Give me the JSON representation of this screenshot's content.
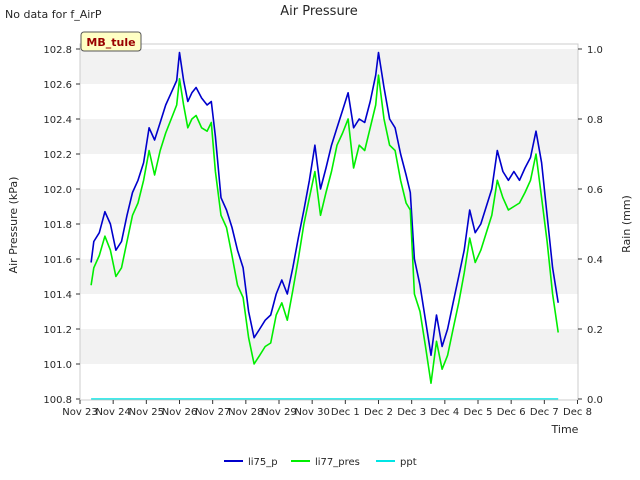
{
  "header": {
    "note": "No data for f_AirP"
  },
  "chart_data": {
    "type": "line",
    "title": "Air Pressure",
    "xlabel": "Time",
    "ylabel": "Air Pressure (kPa)",
    "y2label": "Rain (mm)",
    "station_badge": "MB_tule",
    "x_ticks": [
      "Nov 23",
      "Nov 24",
      "Nov 25",
      "Nov 26",
      "Nov 27",
      "Nov 28",
      "Nov 29",
      "Nov 30",
      "Dec 1",
      "Dec 2",
      "Dec 3",
      "Dec 4",
      "Dec 5",
      "Dec 6",
      "Dec 7",
      "Dec 8"
    ],
    "ylim": [
      100.8,
      102.8
    ],
    "y_ticks": [
      "100.8",
      "101.0",
      "101.2",
      "101.4",
      "101.6",
      "101.8",
      "102.0",
      "102.2",
      "102.4",
      "102.6",
      "102.8"
    ],
    "y2lim": [
      0.0,
      1.0
    ],
    "y2_ticks": [
      "0.0",
      "0.2",
      "0.4",
      "0.6",
      "0.8",
      "1.0"
    ],
    "grid": "horizontal bands",
    "legend_position": "bottom-center",
    "series": [
      {
        "name": "li75_p",
        "color": "#0000cc",
        "axis": "left",
        "points": [
          [
            "Nov 23 08:00",
            101.58
          ],
          [
            "Nov 23 10:00",
            101.7
          ],
          [
            "Nov 23 14:00",
            101.75
          ],
          [
            "Nov 23 18:00",
            101.87
          ],
          [
            "Nov 23 22:00",
            101.8
          ],
          [
            "Nov 24 02:00",
            101.65
          ],
          [
            "Nov 24 06:00",
            101.7
          ],
          [
            "Nov 24 10:00",
            101.85
          ],
          [
            "Nov 24 14:00",
            101.98
          ],
          [
            "Nov 24 18:00",
            102.05
          ],
          [
            "Nov 24 22:00",
            102.15
          ],
          [
            "Nov 25 02:00",
            102.35
          ],
          [
            "Nov 25 06:00",
            102.28
          ],
          [
            "Nov 25 10:00",
            102.38
          ],
          [
            "Nov 25 14:00",
            102.48
          ],
          [
            "Nov 25 18:00",
            102.55
          ],
          [
            "Nov 25 22:00",
            102.62
          ],
          [
            "Nov 26 00:00",
            102.78
          ],
          [
            "Nov 26 03:00",
            102.62
          ],
          [
            "Nov 26 06:00",
            102.5
          ],
          [
            "Nov 26 09:00",
            102.55
          ],
          [
            "Nov 26 12:00",
            102.58
          ],
          [
            "Nov 26 16:00",
            102.52
          ],
          [
            "Nov 26 20:00",
            102.48
          ],
          [
            "Nov 26 23:00",
            102.5
          ],
          [
            "Nov 27 02:00",
            102.3
          ],
          [
            "Nov 27 06:00",
            101.95
          ],
          [
            "Nov 27 10:00",
            101.88
          ],
          [
            "Nov 27 14:00",
            101.78
          ],
          [
            "Nov 27 18:00",
            101.65
          ],
          [
            "Nov 27 22:00",
            101.55
          ],
          [
            "Nov 28 02:00",
            101.3
          ],
          [
            "Nov 28 06:00",
            101.15
          ],
          [
            "Nov 28 10:00",
            101.2
          ],
          [
            "Nov 28 14:00",
            101.25
          ],
          [
            "Nov 28 18:00",
            101.28
          ],
          [
            "Nov 28 22:00",
            101.4
          ],
          [
            "Nov 29 02:00",
            101.48
          ],
          [
            "Nov 29 06:00",
            101.4
          ],
          [
            "Nov 29 10:00",
            101.55
          ],
          [
            "Nov 29 14:00",
            101.72
          ],
          [
            "Nov 29 18:00",
            101.88
          ],
          [
            "Nov 29 22:00",
            102.05
          ],
          [
            "Nov 30 02:00",
            102.25
          ],
          [
            "Nov 30 06:00",
            102.0
          ],
          [
            "Nov 30 10:00",
            102.12
          ],
          [
            "Nov 30 14:00",
            102.25
          ],
          [
            "Nov 30 18:00",
            102.35
          ],
          [
            "Nov 30 22:00",
            102.45
          ],
          [
            "Dec 1 02:00",
            102.55
          ],
          [
            "Dec 1 06:00",
            102.35
          ],
          [
            "Dec 1 10:00",
            102.4
          ],
          [
            "Dec 1 14:00",
            102.38
          ],
          [
            "Dec 1 18:00",
            102.5
          ],
          [
            "Dec 1 22:00",
            102.65
          ],
          [
            "Dec 2 00:00",
            102.78
          ],
          [
            "Dec 2 04:00",
            102.58
          ],
          [
            "Dec 2 08:00",
            102.4
          ],
          [
            "Dec 2 12:00",
            102.35
          ],
          [
            "Dec 2 16:00",
            102.2
          ],
          [
            "Dec 2 20:00",
            102.08
          ],
          [
            "Dec 2 23:00",
            101.98
          ],
          [
            "Dec 3 02:00",
            101.6
          ],
          [
            "Dec 3 06:00",
            101.45
          ],
          [
            "Dec 3 10:00",
            101.25
          ],
          [
            "Dec 3 14:00",
            101.05
          ],
          [
            "Dec 3 18:00",
            101.28
          ],
          [
            "Dec 3 22:00",
            101.1
          ],
          [
            "Dec 4 02:00",
            101.2
          ],
          [
            "Dec 4 06:00",
            101.35
          ],
          [
            "Dec 4 10:00",
            101.5
          ],
          [
            "Dec 4 14:00",
            101.65
          ],
          [
            "Dec 4 18:00",
            101.88
          ],
          [
            "Dec 4 22:00",
            101.75
          ],
          [
            "Dec 5 02:00",
            101.8
          ],
          [
            "Dec 5 06:00",
            101.9
          ],
          [
            "Dec 5 10:00",
            102.0
          ],
          [
            "Dec 5 14:00",
            102.22
          ],
          [
            "Dec 5 18:00",
            102.1
          ],
          [
            "Dec 5 22:00",
            102.05
          ],
          [
            "Dec 6 02:00",
            102.1
          ],
          [
            "Dec 6 06:00",
            102.05
          ],
          [
            "Dec 6 10:00",
            102.12
          ],
          [
            "Dec 6 14:00",
            102.18
          ],
          [
            "Dec 6 18:00",
            102.33
          ],
          [
            "Dec 6 22:00",
            102.15
          ],
          [
            "Dec 7 02:00",
            101.85
          ],
          [
            "Dec 7 06:00",
            101.55
          ],
          [
            "Dec 7 10:00",
            101.35
          ]
        ]
      },
      {
        "name": "li77_pres",
        "color": "#00ee00",
        "axis": "left",
        "points": [
          [
            "Nov 23 08:00",
            101.45
          ],
          [
            "Nov 23 10:00",
            101.55
          ],
          [
            "Nov 23 14:00",
            101.62
          ],
          [
            "Nov 23 18:00",
            101.73
          ],
          [
            "Nov 23 22:00",
            101.65
          ],
          [
            "Nov 24 02:00",
            101.5
          ],
          [
            "Nov 24 06:00",
            101.55
          ],
          [
            "Nov 24 10:00",
            101.7
          ],
          [
            "Nov 24 14:00",
            101.85
          ],
          [
            "Nov 24 18:00",
            101.92
          ],
          [
            "Nov 24 22:00",
            102.05
          ],
          [
            "Nov 25 02:00",
            102.22
          ],
          [
            "Nov 25 06:00",
            102.08
          ],
          [
            "Nov 25 10:00",
            102.22
          ],
          [
            "Nov 25 14:00",
            102.32
          ],
          [
            "Nov 25 18:00",
            102.4
          ],
          [
            "Nov 25 22:00",
            102.48
          ],
          [
            "Nov 26 00:00",
            102.63
          ],
          [
            "Nov 26 03:00",
            102.48
          ],
          [
            "Nov 26 06:00",
            102.35
          ],
          [
            "Nov 26 09:00",
            102.4
          ],
          [
            "Nov 26 12:00",
            102.42
          ],
          [
            "Nov 26 16:00",
            102.35
          ],
          [
            "Nov 26 20:00",
            102.33
          ],
          [
            "Nov 26 23:00",
            102.38
          ],
          [
            "Nov 27 02:00",
            102.1
          ],
          [
            "Nov 27 06:00",
            101.85
          ],
          [
            "Nov 27 10:00",
            101.78
          ],
          [
            "Nov 27 14:00",
            101.62
          ],
          [
            "Nov 27 18:00",
            101.45
          ],
          [
            "Nov 27 22:00",
            101.38
          ],
          [
            "Nov 28 02:00",
            101.15
          ],
          [
            "Nov 28 06:00",
            101.0
          ],
          [
            "Nov 28 10:00",
            101.05
          ],
          [
            "Nov 28 14:00",
            101.1
          ],
          [
            "Nov 28 18:00",
            101.12
          ],
          [
            "Nov 28 22:00",
            101.28
          ],
          [
            "Nov 29 02:00",
            101.35
          ],
          [
            "Nov 29 06:00",
            101.25
          ],
          [
            "Nov 29 10:00",
            101.42
          ],
          [
            "Nov 29 14:00",
            101.6
          ],
          [
            "Nov 29 18:00",
            101.8
          ],
          [
            "Nov 29 22:00",
            101.95
          ],
          [
            "Nov 30 02:00",
            102.1
          ],
          [
            "Nov 30 06:00",
            101.85
          ],
          [
            "Nov 30 10:00",
            101.98
          ],
          [
            "Nov 30 14:00",
            102.1
          ],
          [
            "Nov 30 18:00",
            102.25
          ],
          [
            "Nov 30 22:00",
            102.32
          ],
          [
            "Dec 1 02:00",
            102.4
          ],
          [
            "Dec 1 06:00",
            102.12
          ],
          [
            "Dec 1 10:00",
            102.25
          ],
          [
            "Dec 1 14:00",
            102.22
          ],
          [
            "Dec 1 18:00",
            102.35
          ],
          [
            "Dec 1 22:00",
            102.48
          ],
          [
            "Dec 2 00:00",
            102.65
          ],
          [
            "Dec 2 04:00",
            102.4
          ],
          [
            "Dec 2 08:00",
            102.25
          ],
          [
            "Dec 2 12:00",
            102.22
          ],
          [
            "Dec 2 16:00",
            102.05
          ],
          [
            "Dec 2 20:00",
            101.92
          ],
          [
            "Dec 2 23:00",
            101.88
          ],
          [
            "Dec 3 02:00",
            101.4
          ],
          [
            "Dec 3 06:00",
            101.3
          ],
          [
            "Dec 3 10:00",
            101.1
          ],
          [
            "Dec 3 14:00",
            100.89
          ],
          [
            "Dec 3 18:00",
            101.13
          ],
          [
            "Dec 3 22:00",
            100.97
          ],
          [
            "Dec 4 02:00",
            101.05
          ],
          [
            "Dec 4 06:00",
            101.2
          ],
          [
            "Dec 4 10:00",
            101.35
          ],
          [
            "Dec 4 14:00",
            101.52
          ],
          [
            "Dec 4 18:00",
            101.72
          ],
          [
            "Dec 4 22:00",
            101.58
          ],
          [
            "Dec 5 02:00",
            101.65
          ],
          [
            "Dec 5 06:00",
            101.75
          ],
          [
            "Dec 5 10:00",
            101.85
          ],
          [
            "Dec 5 14:00",
            102.05
          ],
          [
            "Dec 5 18:00",
            101.95
          ],
          [
            "Dec 5 22:00",
            101.88
          ],
          [
            "Dec 6 02:00",
            101.9
          ],
          [
            "Dec 6 06:00",
            101.92
          ],
          [
            "Dec 6 10:00",
            101.98
          ],
          [
            "Dec 6 14:00",
            102.05
          ],
          [
            "Dec 6 18:00",
            102.2
          ],
          [
            "Dec 6 22:00",
            101.95
          ],
          [
            "Dec 7 02:00",
            101.7
          ],
          [
            "Dec 7 06:00",
            101.4
          ],
          [
            "Dec 7 10:00",
            101.18
          ]
        ]
      },
      {
        "name": "ppt",
        "color": "#00e5e5",
        "axis": "right",
        "points": [
          [
            "Nov 23 08:00",
            0.0
          ],
          [
            "Dec 7 10:00",
            0.0
          ]
        ]
      }
    ]
  }
}
